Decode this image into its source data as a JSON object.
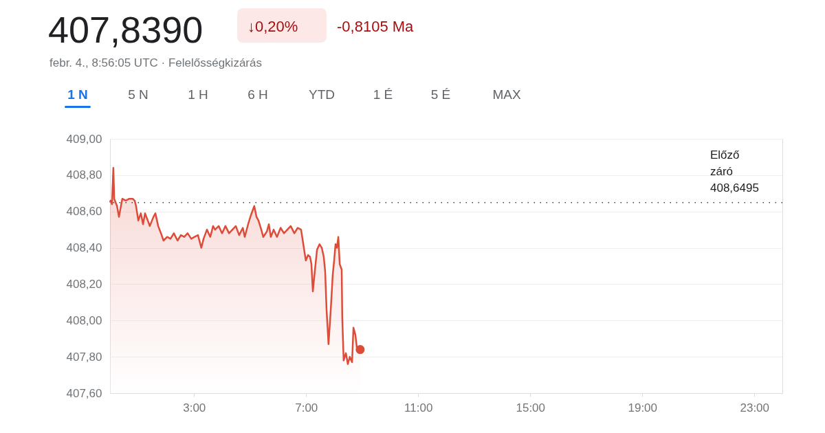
{
  "chart_data": {
    "type": "area",
    "title": "407,8390",
    "annotations": [
      "↓0,20%",
      "-0,8105 Ma",
      "febr. 4., 8:56:05 UTC · Felelősségkizárás",
      "1 N",
      "5 N",
      "1 H",
      "6 H",
      "YTD",
      "1 É",
      "5 É",
      "MAX"
    ],
    "xlim": [
      0,
      24
    ],
    "xticks": [
      {
        "value": 3,
        "label": "3:00"
      },
      {
        "value": 7,
        "label": "7:00"
      },
      {
        "value": 11,
        "label": "11:00"
      },
      {
        "value": 15,
        "label": "15:00"
      },
      {
        "value": 19,
        "label": "19:00"
      },
      {
        "value": 23,
        "label": "23:00"
      }
    ],
    "ylim": [
      407.6,
      409
    ],
    "yticks": [
      {
        "value": 407.6,
        "label": "407,60"
      },
      {
        "value": 407.8,
        "label": "407,80"
      },
      {
        "value": 408,
        "label": "408,00"
      },
      {
        "value": 408.2,
        "label": "408,20"
      },
      {
        "value": 408.4,
        "label": "408,40"
      },
      {
        "value": 408.6,
        "label": "408,60"
      },
      {
        "value": 408.8,
        "label": "408,80"
      },
      {
        "value": 409,
        "label": "409,00"
      }
    ],
    "grid": "y",
    "series": [
      {
        "color": "#dd4b39",
        "x": [
          0.0,
          0.02,
          0.07,
          0.12,
          0.15,
          0.25,
          0.32,
          0.39,
          0.44,
          0.56,
          0.69,
          0.81,
          0.88,
          0.93,
          1.01,
          1.1,
          1.18,
          1.25,
          1.35,
          1.42,
          1.55,
          1.62,
          1.72,
          1.82,
          1.91,
          2.04,
          2.16,
          2.28,
          2.41,
          2.53,
          2.65,
          2.77,
          2.9,
          3.02,
          3.14,
          3.26,
          3.34,
          3.46,
          3.58,
          3.68,
          3.75,
          3.88,
          4.0,
          4.12,
          4.25,
          4.37,
          4.49,
          4.61,
          4.74,
          4.81,
          4.93,
          5.03,
          5.15,
          5.23,
          5.3,
          5.4,
          5.47,
          5.6,
          5.67,
          5.74,
          5.84,
          5.96,
          6.09,
          6.21,
          6.33,
          6.45,
          6.58,
          6.7,
          6.82,
          6.9,
          6.99,
          7.07,
          7.14,
          7.19,
          7.24,
          7.31,
          7.39,
          7.48,
          7.56,
          7.63,
          7.68,
          7.73,
          7.8,
          7.88,
          7.95,
          8.0,
          8.05,
          8.1,
          8.15,
          8.2,
          8.27,
          8.29,
          8.34,
          8.42,
          8.49,
          8.56,
          8.64,
          8.69,
          8.76,
          8.81,
          8.93
        ],
        "values": [
          408.65,
          408.66,
          408.64,
          408.84,
          408.67,
          408.63,
          408.57,
          408.63,
          408.67,
          408.66,
          408.67,
          408.67,
          408.66,
          408.63,
          408.55,
          408.59,
          408.53,
          408.59,
          408.55,
          408.52,
          408.57,
          408.59,
          408.52,
          408.48,
          408.44,
          408.46,
          408.45,
          408.48,
          408.44,
          408.47,
          408.46,
          408.48,
          408.45,
          408.46,
          408.47,
          408.4,
          408.45,
          408.5,
          408.46,
          408.52,
          408.5,
          408.52,
          408.48,
          408.52,
          408.48,
          408.5,
          408.52,
          408.47,
          408.51,
          408.46,
          408.53,
          408.58,
          408.63,
          408.57,
          408.55,
          408.5,
          408.46,
          408.49,
          408.53,
          408.46,
          408.5,
          408.46,
          408.51,
          408.48,
          408.5,
          408.52,
          408.48,
          408.51,
          408.5,
          408.42,
          408.33,
          408.36,
          408.35,
          408.31,
          408.16,
          408.27,
          408.39,
          408.42,
          408.4,
          408.35,
          408.27,
          408.06,
          407.87,
          408.06,
          408.25,
          408.33,
          408.42,
          408.4,
          408.46,
          408.31,
          408.28,
          408.02,
          407.78,
          407.82,
          407.76,
          407.8,
          407.77,
          407.96,
          407.92,
          407.85,
          407.84
        ]
      },
      {
        "type": "scatter",
        "color": "#dd4b39",
        "marker": "circle",
        "x": [
          8.93
        ],
        "values": [
          407.84
        ]
      }
    ],
    "ref_lines": [
      {
        "axis": "y",
        "value": 408.6495,
        "label": "Előző záró 408,6495",
        "color": "#3c4043",
        "line_style": "dotted"
      }
    ]
  }
}
